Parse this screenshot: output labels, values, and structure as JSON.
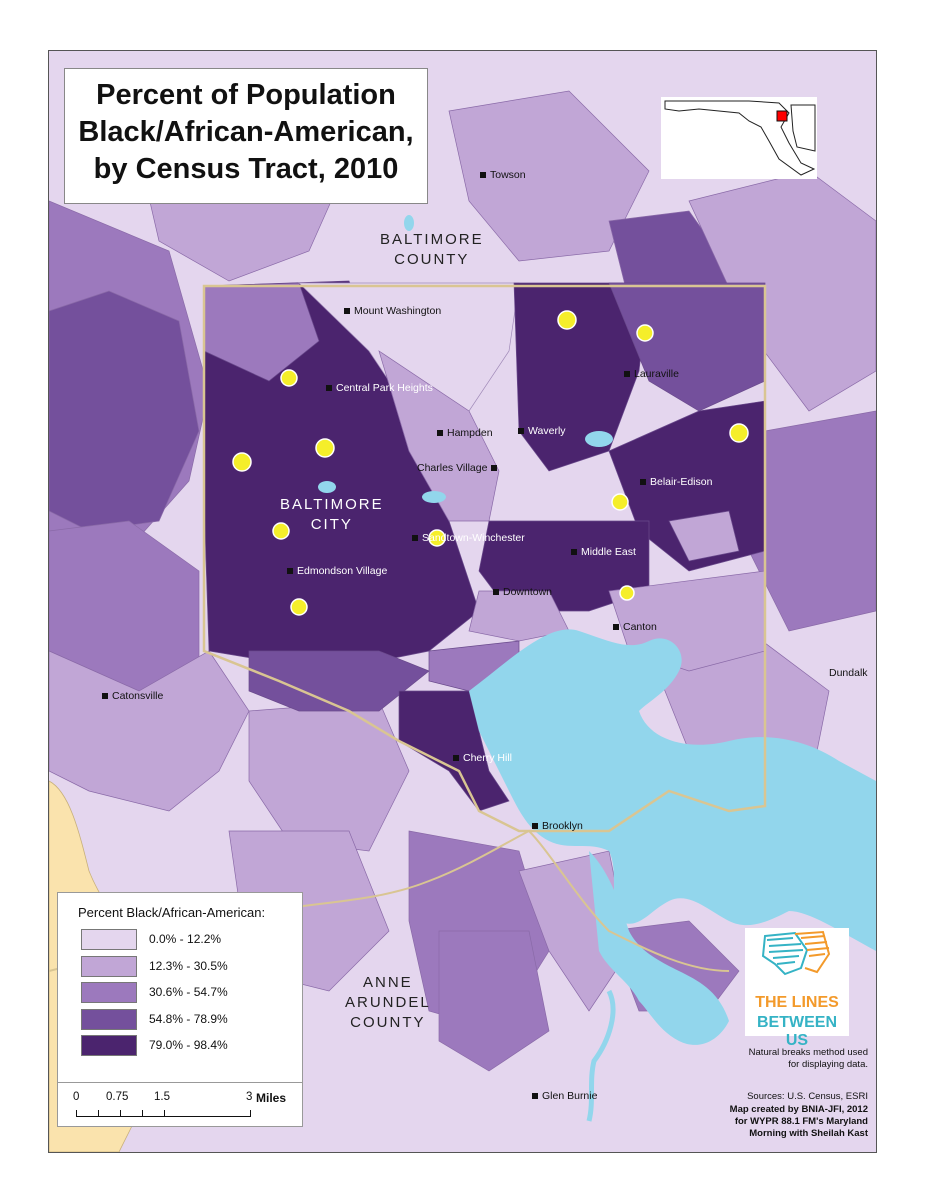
{
  "title_lines": [
    "Percent of Population",
    "Black/African-American,",
    "by Census Tract, 2010"
  ],
  "regions": {
    "baltimore_county": [
      "BALTIMORE",
      "COUNTY"
    ],
    "baltimore_city": [
      "BALTIMORE",
      "CITY"
    ],
    "anne_arundel": [
      "ANNE",
      "ARUNDEL",
      "COUNTY"
    ]
  },
  "places": {
    "towson": "Towson",
    "mount_washington": "Mount Washington",
    "lauraville": "Lauraville",
    "central_park_heights": "Central Park Heights",
    "hampden": "Hampden",
    "waverly": "Waverly",
    "charles_village": "Charles Village",
    "belair_edison": "Belair-Edison",
    "sandtown": "Sandtown-Winchester",
    "middle_east": "Middle East",
    "edmondson_village": "Edmondson Village",
    "downtown": "Downtown",
    "canton": "Canton",
    "dundalk": "Dundalk",
    "catonsville": "Catonsville",
    "cherry_hill": "Cherry Hill",
    "brooklyn": "Brooklyn",
    "glen_burnie": "Glen Burnie"
  },
  "legend": {
    "title": "Percent Black/African-American:",
    "classes": [
      {
        "label": "0.0% - 12.2%",
        "color": "#e4d6ee"
      },
      {
        "label": "12.3% - 30.5%",
        "color": "#c1a6d6"
      },
      {
        "label": "30.6% - 54.7%",
        "color": "#9c79bd"
      },
      {
        "label": "54.8% - 78.9%",
        "color": "#74509c"
      },
      {
        "label": "79.0% - 98.4%",
        "color": "#4b246e"
      }
    ]
  },
  "scale": {
    "ticks": [
      "0",
      "0.75",
      "1.5",
      "3"
    ],
    "unit": "Miles"
  },
  "logo": {
    "line1": "THE LINES",
    "line2": "BETWEEN US"
  },
  "notes": [
    "Natural breaks method used",
    "for displaying data."
  ],
  "sources": "Sources: U.S. Census, ESRI",
  "credit": [
    "Map created by BNIA-JFI, 2012",
    "for WYPR 88.1 FM's Maryland",
    "Morning with Sheilah Kast"
  ],
  "colors": {
    "water": "#92d6ec",
    "marker": "#f5ee2a",
    "city_boundary": "#d9c592",
    "other_county": "#fae3ad"
  }
}
